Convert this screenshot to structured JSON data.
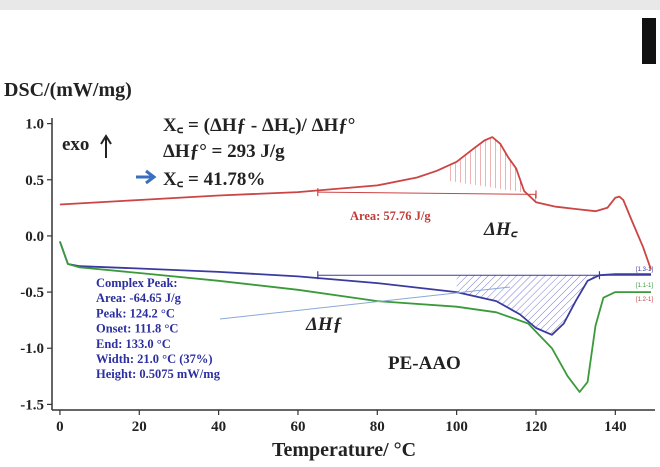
{
  "chart_data": {
    "type": "line",
    "ylabel": "DSC/(mW/mg)",
    "xlabel": "Temperature/ °C",
    "xlim": [
      -2,
      150
    ],
    "ylim": [
      -1.55,
      1.05
    ],
    "x_ticks": [
      "0",
      "20",
      "40",
      "60",
      "80",
      "100",
      "120",
      "140"
    ],
    "y_ticks": [
      "1.0",
      "0.5",
      "0.0",
      "-0.5",
      "-1.0",
      "-1.5"
    ],
    "exo_label": "exo",
    "equations": {
      "line1": "X꜀ = (ΔHƒ - ΔH꜀)/ ΔHƒ°",
      "line2": "ΔHƒ° = 293 J/g",
      "line3": "X꜀ = 41.78%"
    },
    "red_area_label": "Area: 57.76 J/g",
    "delta_hc_label": "ΔH꜀",
    "delta_hf_label": "ΔHƒ",
    "sample_label": "PE-AAO",
    "complex_peak": [
      "Complex Peak:",
      "Area: -64.65 J/g",
      "Peak: 124.2 °C",
      "Onset: 111.8 °C",
      "End: 133.0 °C",
      "Width: 21.0 °C (37%)",
      "Height: 0.5075 mW/mg"
    ],
    "series": [
      {
        "color": "#cc4444",
        "points": [
          [
            0,
            0.28
          ],
          [
            20,
            0.32
          ],
          [
            40,
            0.36
          ],
          [
            60,
            0.39
          ],
          [
            80,
            0.45
          ],
          [
            90,
            0.52
          ],
          [
            95,
            0.58
          ],
          [
            100,
            0.66
          ],
          [
            104,
            0.77
          ],
          [
            107,
            0.85
          ],
          [
            109,
            0.88
          ],
          [
            111,
            0.82
          ],
          [
            113,
            0.7
          ],
          [
            115,
            0.6
          ],
          [
            117,
            0.4
          ],
          [
            120,
            0.3
          ],
          [
            125,
            0.26
          ],
          [
            130,
            0.24
          ],
          [
            135,
            0.22
          ],
          [
            138,
            0.25
          ],
          [
            140,
            0.34
          ],
          [
            141,
            0.35
          ],
          [
            142,
            0.32
          ],
          [
            144,
            0.15
          ],
          [
            147,
            -0.1
          ],
          [
            149,
            -0.3
          ]
        ]
      },
      {
        "color": "#3a3aa0",
        "points": [
          [
            0,
            -0.05
          ],
          [
            2,
            -0.25
          ],
          [
            5,
            -0.27
          ],
          [
            20,
            -0.29
          ],
          [
            40,
            -0.32
          ],
          [
            60,
            -0.36
          ],
          [
            80,
            -0.42
          ],
          [
            100,
            -0.5
          ],
          [
            110,
            -0.58
          ],
          [
            116,
            -0.7
          ],
          [
            120,
            -0.82
          ],
          [
            124,
            -0.88
          ],
          [
            127,
            -0.78
          ],
          [
            130,
            -0.58
          ],
          [
            133,
            -0.4
          ],
          [
            136,
            -0.35
          ],
          [
            140,
            -0.34
          ],
          [
            149,
            -0.34
          ]
        ]
      },
      {
        "color": "#3a9a3a",
        "points": [
          [
            0,
            -0.05
          ],
          [
            2,
            -0.25
          ],
          [
            5,
            -0.28
          ],
          [
            20,
            -0.33
          ],
          [
            40,
            -0.4
          ],
          [
            60,
            -0.48
          ],
          [
            80,
            -0.58
          ],
          [
            100,
            -0.63
          ],
          [
            110,
            -0.68
          ],
          [
            118,
            -0.78
          ],
          [
            124,
            -1.0
          ],
          [
            128,
            -1.25
          ],
          [
            131,
            -1.39
          ],
          [
            133,
            -1.3
          ],
          [
            135,
            -0.8
          ],
          [
            137,
            -0.55
          ],
          [
            140,
            -0.5
          ],
          [
            149,
            -0.5
          ]
        ]
      }
    ],
    "red_fill": {
      "from": 98,
      "to": 120,
      "baseline": [
        [
          98,
          0.49
        ],
        [
          120,
          0.37
        ]
      ]
    },
    "blue_fill": {
      "from": 100,
      "to": 135,
      "baseline": -0.35
    },
    "right_legend": [
      "[1.3-1]",
      "[1.1-1]",
      "[1.2-1]"
    ]
  }
}
